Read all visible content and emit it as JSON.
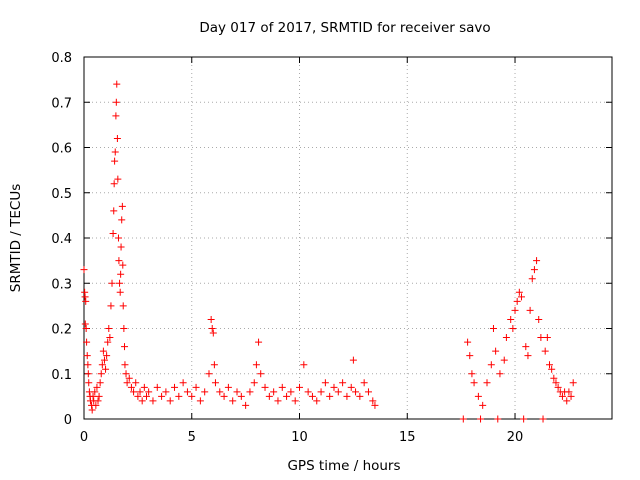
{
  "chart_data": {
    "type": "scatter",
    "title": "Day 017 of 2017, SRMTID for receiver savo",
    "xlabel": "GPS time / hours",
    "ylabel": "SRMTID / TECUs",
    "xlim": [
      0,
      24.5
    ],
    "ylim": [
      0,
      0.8
    ],
    "xticks": [
      0,
      5,
      10,
      15,
      20
    ],
    "xtick_labels": [
      "0",
      "5",
      "10",
      "15",
      "20"
    ],
    "yticks": [
      0,
      0.1,
      0.2,
      0.3,
      0.4,
      0.5,
      0.6,
      0.7,
      0.8
    ],
    "ytick_labels": [
      "0",
      "0.1",
      "0.2",
      "0.3",
      "0.4",
      "0.5",
      "0.6",
      "0.7",
      "0.8"
    ],
    "grid": true,
    "marker": "plus",
    "color": "#ff0000",
    "series": [
      {
        "name": "SRMTID",
        "points": [
          [
            0.0,
            0.33
          ],
          [
            0.03,
            0.28
          ],
          [
            0.05,
            0.27
          ],
          [
            0.08,
            0.26
          ],
          [
            0.06,
            0.21
          ],
          [
            0.1,
            0.2
          ],
          [
            0.12,
            0.17
          ],
          [
            0.15,
            0.14
          ],
          [
            0.18,
            0.12
          ],
          [
            0.2,
            0.1
          ],
          [
            0.22,
            0.08
          ],
          [
            0.25,
            0.06
          ],
          [
            0.28,
            0.05
          ],
          [
            0.3,
            0.04
          ],
          [
            0.35,
            0.03
          ],
          [
            0.38,
            0.02
          ],
          [
            0.42,
            0.05
          ],
          [
            0.45,
            0.04
          ],
          [
            0.5,
            0.06
          ],
          [
            0.55,
            0.03
          ],
          [
            0.6,
            0.07
          ],
          [
            0.65,
            0.04
          ],
          [
            0.7,
            0.05
          ],
          [
            0.75,
            0.08
          ],
          [
            0.8,
            0.1
          ],
          [
            0.85,
            0.12
          ],
          [
            0.9,
            0.15
          ],
          [
            0.95,
            0.13
          ],
          [
            1.0,
            0.11
          ],
          [
            1.05,
            0.14
          ],
          [
            1.1,
            0.17
          ],
          [
            1.15,
            0.2
          ],
          [
            1.2,
            0.18
          ],
          [
            1.25,
            0.25
          ],
          [
            1.3,
            0.3
          ],
          [
            1.35,
            0.41
          ],
          [
            1.38,
            0.46
          ],
          [
            1.4,
            0.52
          ],
          [
            1.42,
            0.57
          ],
          [
            1.45,
            0.59
          ],
          [
            1.48,
            0.67
          ],
          [
            1.5,
            0.7
          ],
          [
            1.52,
            0.74
          ],
          [
            1.55,
            0.62
          ],
          [
            1.57,
            0.53
          ],
          [
            1.6,
            0.4
          ],
          [
            1.62,
            0.35
          ],
          [
            1.65,
            0.3
          ],
          [
            1.68,
            0.28
          ],
          [
            1.7,
            0.32
          ],
          [
            1.72,
            0.38
          ],
          [
            1.75,
            0.44
          ],
          [
            1.78,
            0.47
          ],
          [
            1.8,
            0.34
          ],
          [
            1.82,
            0.25
          ],
          [
            1.85,
            0.2
          ],
          [
            1.88,
            0.16
          ],
          [
            1.9,
            0.12
          ],
          [
            1.95,
            0.1
          ],
          [
            2.0,
            0.08
          ],
          [
            2.1,
            0.09
          ],
          [
            2.2,
            0.07
          ],
          [
            2.3,
            0.06
          ],
          [
            2.4,
            0.08
          ],
          [
            2.5,
            0.05
          ],
          [
            2.6,
            0.06
          ],
          [
            2.7,
            0.04
          ],
          [
            2.8,
            0.07
          ],
          [
            2.9,
            0.05
          ],
          [
            3.0,
            0.06
          ],
          [
            3.2,
            0.04
          ],
          [
            3.4,
            0.07
          ],
          [
            3.6,
            0.05
          ],
          [
            3.8,
            0.06
          ],
          [
            4.0,
            0.04
          ],
          [
            4.2,
            0.07
          ],
          [
            4.4,
            0.05
          ],
          [
            4.6,
            0.08
          ],
          [
            4.8,
            0.06
          ],
          [
            5.0,
            0.05
          ],
          [
            5.2,
            0.07
          ],
          [
            5.4,
            0.04
          ],
          [
            5.6,
            0.06
          ],
          [
            5.8,
            0.1
          ],
          [
            5.9,
            0.22
          ],
          [
            5.95,
            0.2
          ],
          [
            6.0,
            0.19
          ],
          [
            6.05,
            0.12
          ],
          [
            6.1,
            0.08
          ],
          [
            6.3,
            0.06
          ],
          [
            6.5,
            0.05
          ],
          [
            6.7,
            0.07
          ],
          [
            6.9,
            0.04
          ],
          [
            7.1,
            0.06
          ],
          [
            7.3,
            0.05
          ],
          [
            7.5,
            0.03
          ],
          [
            7.7,
            0.06
          ],
          [
            7.9,
            0.08
          ],
          [
            8.0,
            0.12
          ],
          [
            8.1,
            0.17
          ],
          [
            8.2,
            0.1
          ],
          [
            8.4,
            0.07
          ],
          [
            8.6,
            0.05
          ],
          [
            8.8,
            0.06
          ],
          [
            9.0,
            0.04
          ],
          [
            9.2,
            0.07
          ],
          [
            9.4,
            0.05
          ],
          [
            9.6,
            0.06
          ],
          [
            9.8,
            0.04
          ],
          [
            10.0,
            0.07
          ],
          [
            10.2,
            0.12
          ],
          [
            10.4,
            0.06
          ],
          [
            10.6,
            0.05
          ],
          [
            10.8,
            0.04
          ],
          [
            11.0,
            0.06
          ],
          [
            11.2,
            0.08
          ],
          [
            11.4,
            0.05
          ],
          [
            11.6,
            0.07
          ],
          [
            11.8,
            0.06
          ],
          [
            12.0,
            0.08
          ],
          [
            12.2,
            0.05
          ],
          [
            12.4,
            0.07
          ],
          [
            12.5,
            0.13
          ],
          [
            12.6,
            0.06
          ],
          [
            12.8,
            0.05
          ],
          [
            13.0,
            0.08
          ],
          [
            13.2,
            0.06
          ],
          [
            13.4,
            0.04
          ],
          [
            13.5,
            0.03
          ],
          [
            17.6,
            0.0
          ],
          [
            17.8,
            0.17
          ],
          [
            17.9,
            0.14
          ],
          [
            18.0,
            0.1
          ],
          [
            18.1,
            0.08
          ],
          [
            18.3,
            0.05
          ],
          [
            18.4,
            0.0
          ],
          [
            18.5,
            0.03
          ],
          [
            18.7,
            0.08
          ],
          [
            18.9,
            0.12
          ],
          [
            19.0,
            0.2
          ],
          [
            19.1,
            0.15
          ],
          [
            19.2,
            0.0
          ],
          [
            19.3,
            0.1
          ],
          [
            19.5,
            0.13
          ],
          [
            19.6,
            0.18
          ],
          [
            19.8,
            0.22
          ],
          [
            19.9,
            0.2
          ],
          [
            20.0,
            0.24
          ],
          [
            20.1,
            0.26
          ],
          [
            20.2,
            0.28
          ],
          [
            20.3,
            0.27
          ],
          [
            20.4,
            0.0
          ],
          [
            20.5,
            0.16
          ],
          [
            20.6,
            0.14
          ],
          [
            20.7,
            0.24
          ],
          [
            20.8,
            0.31
          ],
          [
            20.9,
            0.33
          ],
          [
            21.0,
            0.35
          ],
          [
            21.1,
            0.22
          ],
          [
            21.2,
            0.18
          ],
          [
            21.3,
            0.0
          ],
          [
            21.4,
            0.15
          ],
          [
            21.5,
            0.18
          ],
          [
            21.6,
            0.12
          ],
          [
            21.7,
            0.11
          ],
          [
            21.8,
            0.09
          ],
          [
            21.9,
            0.08
          ],
          [
            22.0,
            0.07
          ],
          [
            22.1,
            0.06
          ],
          [
            22.2,
            0.05
          ],
          [
            22.3,
            0.06
          ],
          [
            22.4,
            0.04
          ],
          [
            22.5,
            0.06
          ],
          [
            22.6,
            0.05
          ],
          [
            22.7,
            0.08
          ]
        ]
      }
    ]
  }
}
